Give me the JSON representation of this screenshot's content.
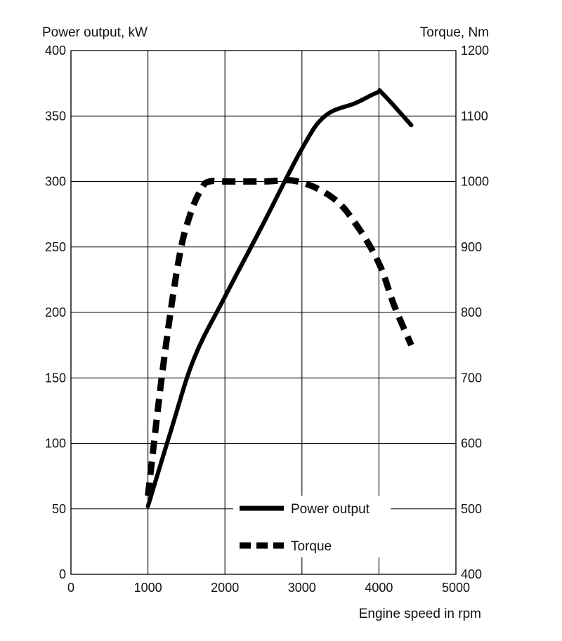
{
  "chart_data": {
    "type": "line",
    "xlabel": "Engine speed in rpm",
    "ylabel_left": "Power output, kW",
    "ylabel_right": "Torque, Nm",
    "xlim": [
      0,
      5000
    ],
    "ylim_left": [
      0,
      400
    ],
    "ylim_right": [
      400,
      1200
    ],
    "x_ticks": [
      "0",
      "1000",
      "2000",
      "3000",
      "4000",
      "5000"
    ],
    "y_ticks_left": [
      "0",
      "50",
      "100",
      "150",
      "200",
      "250",
      "300",
      "350",
      "400"
    ],
    "y_ticks_right": [
      "400",
      "500",
      "600",
      "700",
      "800",
      "900",
      "1000",
      "1100",
      "1200"
    ],
    "grid": true,
    "legend": [
      {
        "name": "Power output",
        "style": "solid"
      },
      {
        "name": "Torque",
        "style": "dashed"
      }
    ],
    "series": [
      {
        "name": "Power output",
        "axis": "left",
        "style": "solid",
        "color": "#000000",
        "points": [
          [
            1000,
            52
          ],
          [
            1300,
            110
          ],
          [
            1600,
            165
          ],
          [
            2000,
            212
          ],
          [
            2500,
            268
          ],
          [
            3000,
            325
          ],
          [
            3300,
            350
          ],
          [
            3700,
            360
          ],
          [
            3980,
            368
          ],
          [
            4050,
            367
          ],
          [
            4420,
            343
          ]
        ]
      },
      {
        "name": "Torque",
        "axis": "right",
        "style": "dashed",
        "color": "#000000",
        "points": [
          [
            1000,
            520
          ],
          [
            1200,
            720
          ],
          [
            1400,
            880
          ],
          [
            1550,
            950
          ],
          [
            1700,
            990
          ],
          [
            1800,
            1000
          ],
          [
            2000,
            1000
          ],
          [
            2500,
            1000
          ],
          [
            2950,
            1000
          ],
          [
            3400,
            975
          ],
          [
            3700,
            935
          ],
          [
            4000,
            875
          ],
          [
            4200,
            810
          ],
          [
            4420,
            750
          ]
        ]
      }
    ]
  }
}
